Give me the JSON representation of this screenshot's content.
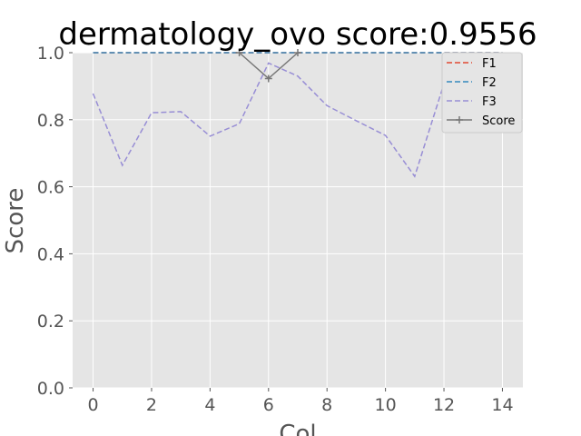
{
  "chart_data": {
    "type": "line",
    "title": "dermatology_ovo score:0.9556",
    "xlabel": "Col",
    "ylabel": "Score",
    "xlim": [
      -0.7,
      14.7
    ],
    "ylim": [
      0.0,
      1.0
    ],
    "xticks": [
      0,
      2,
      4,
      6,
      8,
      10,
      12,
      14
    ],
    "xtick_labels": [
      "0",
      "2",
      "4",
      "6",
      "8",
      "10",
      "12",
      "14"
    ],
    "yticks": [
      0.0,
      0.2,
      0.4,
      0.6,
      0.8,
      1.0
    ],
    "ytick_labels": [
      "0.0",
      "0.2",
      "0.4",
      "0.6",
      "0.8",
      "1.0"
    ],
    "grid": true,
    "legend_position": "top-right",
    "x": [
      0,
      1,
      2,
      3,
      4,
      5,
      6,
      7,
      8,
      9,
      10,
      11,
      12,
      13,
      14
    ],
    "series": [
      {
        "name": "F1",
        "color": "#e24a33",
        "style": "dashed",
        "values": [
          1,
          1,
          1,
          1,
          1,
          1,
          1,
          1,
          1,
          1,
          1,
          1,
          1,
          1,
          1
        ]
      },
      {
        "name": "F2",
        "color": "#348abd",
        "style": "dashed",
        "values": [
          1,
          1,
          1,
          1,
          1,
          1,
          1,
          1,
          1,
          1,
          1,
          1,
          1,
          1,
          1
        ]
      },
      {
        "name": "F3",
        "color": "#988ed5",
        "style": "dashed",
        "values": [
          0.878,
          0.664,
          0.821,
          0.824,
          0.751,
          0.788,
          0.969,
          0.93,
          0.842,
          0.797,
          0.753,
          0.631,
          0.907,
          0.838,
          0.813
        ]
      },
      {
        "name": "Score",
        "color": "#777777",
        "style": "solid-marker",
        "x": [
          5,
          6,
          7
        ],
        "values": [
          1.0,
          0.9229,
          1.0
        ]
      }
    ]
  }
}
